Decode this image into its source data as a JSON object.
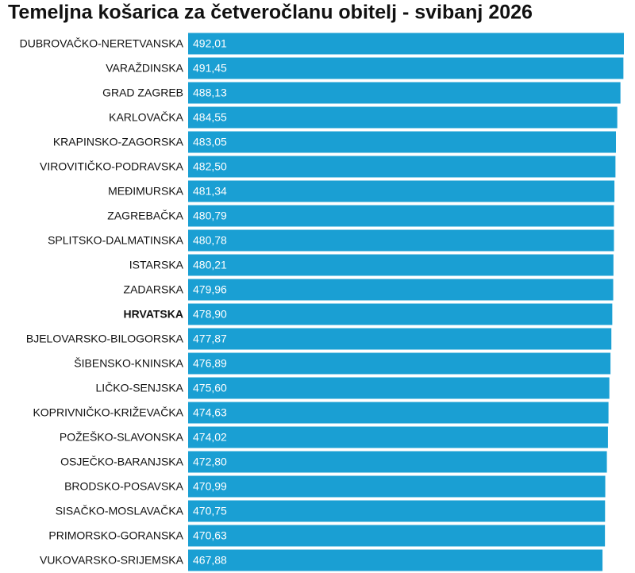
{
  "chart_data": {
    "type": "hbar",
    "title": "Temeljna košarica za četveročlanu obitelj - svibanj 2026",
    "categories": [
      "DUBROVAČKO-NERETVANSKA",
      "VARAŽDINSKA",
      "GRAD ZAGREB",
      "KARLOVAČKA",
      "KRAPINSKO-ZAGORSKA",
      "VIROVITIČKO-PODRAVSKA",
      "MEĐIMURSKA",
      "ZAGREBAČKA",
      "SPLITSKO-DALMATINSKA",
      "ISTARSKA",
      "ZADARSKA",
      "HRVATSKA",
      "BJELOVARSKO-BILOGORSKA",
      "ŠIBENSKO-KNINSKA",
      "LIČKO-SENJSKA",
      "KOPRIVNIČKO-KRIŽEVAČKA",
      "POŽEŠKO-SLAVONSKA",
      "OSJEČKO-BARANJSKA",
      "BRODSKO-POSAVSKA",
      "SISAČKO-MOSLAVAČKA",
      "PRIMORSKO-GORANSKA",
      "VUKOVARSKO-SRIJEMSKA"
    ],
    "values": [
      492.01,
      491.45,
      488.13,
      484.55,
      483.05,
      482.5,
      481.34,
      480.79,
      480.78,
      480.21,
      479.96,
      478.9,
      477.87,
      476.89,
      475.6,
      474.63,
      474.02,
      472.8,
      470.99,
      470.75,
      470.63,
      467.88
    ],
    "value_labels": [
      "492,01",
      "491,45",
      "488,13",
      "484,55",
      "483,05",
      "482,50",
      "481,34",
      "480,79",
      "480,78",
      "480,21",
      "479,96",
      "478,90",
      "477,87",
      "476,89",
      "475,60",
      "474,63",
      "474,02",
      "472,80",
      "470,99",
      "470,75",
      "470,63",
      "467,88"
    ],
    "color": "#1a9fd3",
    "highlight": "HRVATSKA"
  }
}
